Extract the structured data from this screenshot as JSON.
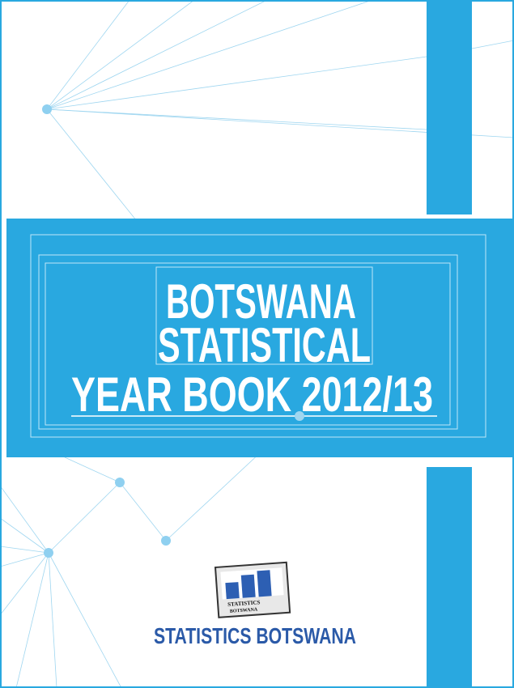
{
  "cover": {
    "title_lines": [
      "BOTSWANA",
      "STATISTICAL",
      "YEAR BOOK 2012/13"
    ],
    "logo": {
      "lines": [
        "STATISTICS",
        "BOTSWANA"
      ]
    },
    "publisher": "STATISTICS  BOTSWANA"
  }
}
